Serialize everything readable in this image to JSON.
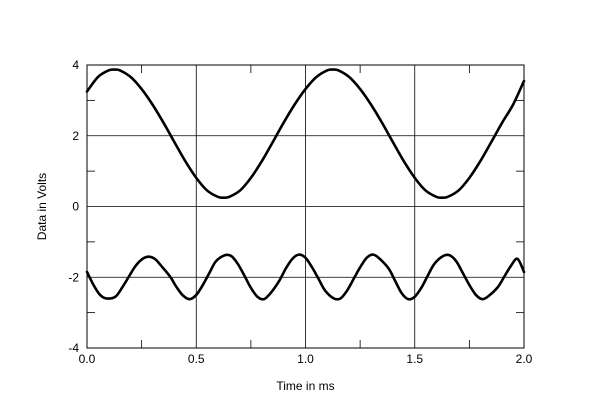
{
  "chart_data": {
    "type": "line",
    "title": "",
    "xlabel": "Time in ms",
    "ylabel": "Data in Volts",
    "xlim": [
      0.0,
      2.0
    ],
    "ylim": [
      -4,
      4
    ],
    "x_ticks": [
      "0.0",
      "0.5",
      "1.0",
      "1.5",
      "2.0"
    ],
    "y_ticks": [
      "4",
      "2",
      "0",
      "-2",
      "-4"
    ],
    "grid": true,
    "series": [
      {
        "x": [
          0.0,
          0.05,
          0.1,
          0.125,
          0.15,
          0.2,
          0.25,
          0.3,
          0.35,
          0.4,
          0.45,
          0.5,
          0.55,
          0.6,
          0.625,
          0.65,
          0.7,
          0.75,
          0.8,
          0.85,
          0.9,
          0.95,
          1.0,
          1.05,
          1.1,
          1.125,
          1.15,
          1.2,
          1.25,
          1.3,
          1.35,
          1.4,
          1.45,
          1.5,
          1.55,
          1.6,
          1.625,
          1.65,
          1.7,
          1.75,
          1.8,
          1.85,
          1.9,
          1.95,
          2.0
        ],
        "values": [
          3.25,
          3.66,
          3.85,
          3.87,
          3.85,
          3.66,
          3.32,
          2.88,
          2.37,
          1.82,
          1.28,
          0.81,
          0.45,
          0.27,
          0.25,
          0.27,
          0.45,
          0.81,
          1.28,
          1.82,
          2.37,
          2.88,
          3.32,
          3.66,
          3.85,
          3.87,
          3.85,
          3.66,
          3.32,
          2.88,
          2.37,
          1.82,
          1.28,
          0.81,
          0.45,
          0.27,
          0.25,
          0.27,
          0.45,
          0.81,
          1.28,
          1.82,
          2.37,
          2.88,
          3.55
        ]
      },
      {
        "x": [
          0.0,
          0.03,
          0.06,
          0.09,
          0.13,
          0.16,
          0.19,
          0.22,
          0.25,
          0.28,
          0.31,
          0.34,
          0.38,
          0.41,
          0.44,
          0.47,
          0.5,
          0.53,
          0.56,
          0.59,
          0.63,
          0.66,
          0.69,
          0.72,
          0.75,
          0.78,
          0.81,
          0.84,
          0.88,
          0.91,
          0.94,
          0.97,
          1.0,
          1.03,
          1.06,
          1.09,
          1.13,
          1.16,
          1.19,
          1.22,
          1.25,
          1.28,
          1.31,
          1.34,
          1.38,
          1.41,
          1.44,
          1.47,
          1.5,
          1.53,
          1.56,
          1.59,
          1.63,
          1.66,
          1.69,
          1.72,
          1.75,
          1.78,
          1.81,
          1.84,
          1.88,
          1.91,
          1.94,
          1.97,
          2.0
        ],
        "values": [
          -1.85,
          -2.22,
          -2.5,
          -2.6,
          -2.55,
          -2.3,
          -2.0,
          -1.7,
          -1.5,
          -1.42,
          -1.48,
          -1.68,
          -1.98,
          -2.28,
          -2.52,
          -2.62,
          -2.5,
          -2.22,
          -1.88,
          -1.55,
          -1.38,
          -1.4,
          -1.62,
          -1.95,
          -2.3,
          -2.55,
          -2.62,
          -2.45,
          -2.1,
          -1.75,
          -1.48,
          -1.36,
          -1.45,
          -1.72,
          -2.05,
          -2.38,
          -2.6,
          -2.6,
          -2.38,
          -2.05,
          -1.72,
          -1.45,
          -1.36,
          -1.48,
          -1.75,
          -2.1,
          -2.45,
          -2.62,
          -2.55,
          -2.3,
          -1.95,
          -1.62,
          -1.4,
          -1.38,
          -1.55,
          -1.88,
          -2.22,
          -2.5,
          -2.62,
          -2.52,
          -2.28,
          -1.98,
          -1.68,
          -1.48,
          -1.85
        ]
      }
    ]
  },
  "colors": {
    "line": "#000000",
    "grid": "#000000",
    "background": "#ffffff"
  }
}
